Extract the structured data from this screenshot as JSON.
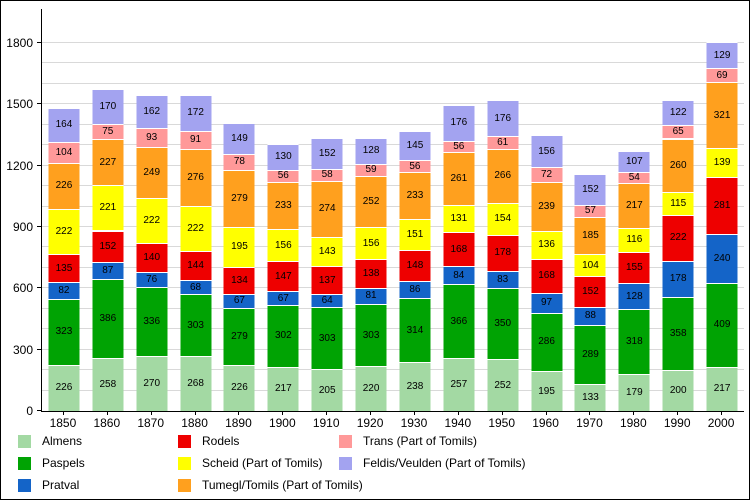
{
  "chart_data": {
    "type": "bar",
    "stacked": true,
    "title": "",
    "xlabel": "",
    "ylabel": "",
    "ylim": [
      0,
      1800
    ],
    "y_major_ticks": [
      0,
      300,
      600,
      900,
      1200,
      1500,
      1800
    ],
    "y_minor_step": 100,
    "grid": true,
    "legend_position": "bottom",
    "value_labels": true,
    "categories": [
      "1850",
      "1860",
      "1870",
      "1880",
      "1890",
      "1900",
      "1910",
      "1920",
      "1930",
      "1940",
      "1950",
      "1960",
      "1970",
      "1980",
      "1990",
      "2000"
    ],
    "series": [
      {
        "name": "Almens",
        "color": "#a3d9a3",
        "values": [
          226,
          258,
          270,
          268,
          226,
          217,
          205,
          220,
          238,
          257,
          252,
          195,
          133,
          179,
          200,
          217
        ]
      },
      {
        "name": "Paspels",
        "color": "#00a303",
        "values": [
          323,
          386,
          336,
          303,
          279,
          302,
          303,
          303,
          314,
          366,
          350,
          286,
          289,
          318,
          358,
          409
        ]
      },
      {
        "name": "Pratval",
        "color": "#1464c8",
        "values": [
          82,
          87,
          76,
          68,
          67,
          67,
          64,
          81,
          86,
          84,
          83,
          97,
          88,
          128,
          178,
          240
        ]
      },
      {
        "name": "Rodels",
        "color": "#ee0000",
        "values": [
          135,
          152,
          140,
          144,
          134,
          147,
          137,
          138,
          148,
          168,
          178,
          168,
          152,
          155,
          222,
          281
        ]
      },
      {
        "name": "Scheid (Part of Tomils)",
        "color": "#ffff00",
        "values": [
          222,
          221,
          222,
          222,
          195,
          156,
          143,
          156,
          151,
          131,
          154,
          136,
          104,
          116,
          115,
          139
        ]
      },
      {
        "name": "Tumegl/Tomils (Part of Tomils)",
        "color": "#ffa01e",
        "values": [
          226,
          227,
          249,
          276,
          279,
          233,
          274,
          252,
          233,
          261,
          266,
          239,
          185,
          217,
          260,
          321
        ]
      },
      {
        "name": "Trans (Part of Tomils)",
        "color": "#ff9999",
        "values": [
          104,
          75,
          93,
          91,
          78,
          56,
          58,
          59,
          56,
          56,
          61,
          72,
          57,
          54,
          65,
          69
        ]
      },
      {
        "name": "Feldis/Veulden (Part of Tomils)",
        "color": "#a3a3f0",
        "values": [
          164,
          170,
          162,
          172,
          149,
          130,
          152,
          128,
          145,
          176,
          176,
          156,
          152,
          107,
          122,
          129
        ]
      }
    ]
  }
}
